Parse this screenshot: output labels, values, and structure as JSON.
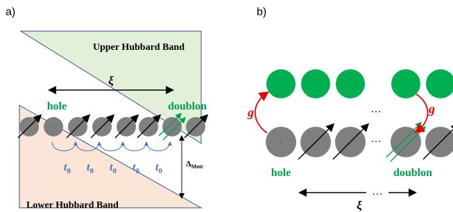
{
  "panel_a": {
    "label": "a)",
    "upper_band": "Upper Hubbard Band",
    "lower_band": "Lower Hubbard Band",
    "xi": "ξ",
    "hole": "hole",
    "doublon": "doublon",
    "hoppings": [
      {
        "symbol": "t",
        "subscript": "0"
      },
      {
        "symbol": "t",
        "subscript": "0"
      },
      {
        "symbol": "t",
        "subscript": "0"
      },
      {
        "symbol": "t",
        "subscript": "0"
      },
      {
        "symbol": "t",
        "subscript": "0"
      }
    ],
    "gap": {
      "symbol": "Δ",
      "subscript": "Mott"
    }
  },
  "panel_b": {
    "label": "b)",
    "g_left": "g",
    "g_right": "g",
    "dots_top": "…",
    "dots_bottom": "…",
    "hole": "hole",
    "doublon": "doublon",
    "dots_length": "…",
    "xi": "ξ"
  }
}
